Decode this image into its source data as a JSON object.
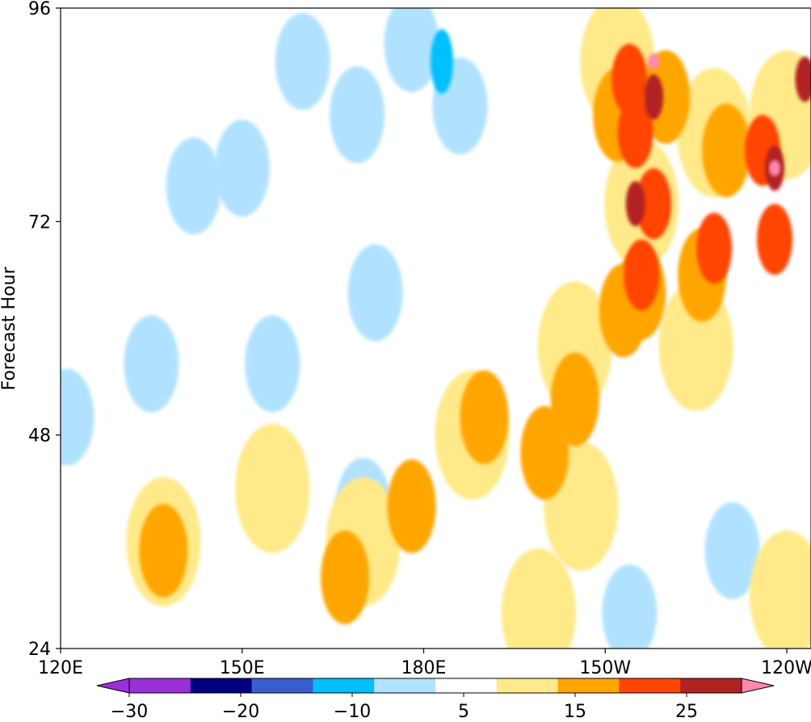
{
  "chart_data": {
    "type": "heatmap",
    "title": "",
    "xlabel": "",
    "ylabel": "Forecast Hour",
    "x_ticks": [
      "120E",
      "150E",
      "180E",
      "150W",
      "120W"
    ],
    "y_ticks": [
      24,
      48,
      72,
      96
    ],
    "xlim_deg_east": [
      120,
      244
    ],
    "ylim": [
      24,
      96
    ],
    "grid": false,
    "colorbar": {
      "orientation": "horizontal",
      "levels": [
        -30,
        -25,
        -20,
        -15,
        -10,
        -5,
        5,
        10,
        15,
        20,
        25,
        30
      ],
      "tick_labels": [
        "−30",
        "−20",
        "−10",
        "5",
        "15",
        "25"
      ],
      "colors": [
        "#9b30d8",
        "#000080",
        "#3a5fcd",
        "#00bfff",
        "#b0e2ff",
        "#ffffff",
        "#ffe988",
        "#ffa500",
        "#ff4500",
        "#b22222",
        "#ff88b0"
      ],
      "extend": "both",
      "under_color": "#9b30d8",
      "over_color": "#ff88b0"
    },
    "features": [
      {
        "x": 150,
        "y": 78,
        "band": "-10 to -5"
      },
      {
        "x": 172,
        "y": 64,
        "band": "-10 to -5"
      },
      {
        "x": 135,
        "y": 56,
        "band": "-10 to -5"
      },
      {
        "x": 121,
        "y": 50,
        "band": "-10 to -5"
      },
      {
        "x": 155,
        "y": 56,
        "band": "-10 to -5"
      },
      {
        "x": 160,
        "y": 90,
        "band": "-10 to -5"
      },
      {
        "x": 169,
        "y": 84,
        "band": "-10 to -5"
      },
      {
        "x": 142,
        "y": 76,
        "band": "-10 to -5"
      },
      {
        "x": 170,
        "y": 40,
        "band": "-10 to -5"
      },
      {
        "x": 231,
        "y": 35,
        "band": "-10 to -5"
      },
      {
        "x": 214,
        "y": 28,
        "band": "-10 to -5"
      },
      {
        "x": 178,
        "y": 92,
        "band": "-10 to -5"
      },
      {
        "x": 183,
        "y": 90,
        "band": "-15 to -10"
      },
      {
        "x": 186,
        "y": 85,
        "band": "-10 to -5"
      },
      {
        "x": 212,
        "y": 90,
        "band": "5 to 10"
      },
      {
        "x": 216,
        "y": 74,
        "band": "5 to 10"
      },
      {
        "x": 228,
        "y": 82,
        "band": "5 to 10"
      },
      {
        "x": 240,
        "y": 84,
        "band": "5 to 10"
      },
      {
        "x": 225,
        "y": 58,
        "band": "5 to 10"
      },
      {
        "x": 205,
        "y": 58,
        "band": "5 to 10"
      },
      {
        "x": 188,
        "y": 48,
        "band": "5 to 10"
      },
      {
        "x": 170,
        "y": 36,
        "band": "5 to 10"
      },
      {
        "x": 206,
        "y": 40,
        "band": "5 to 10"
      },
      {
        "x": 155,
        "y": 42,
        "band": "5 to 10"
      },
      {
        "x": 137,
        "y": 36,
        "band": "5 to 10"
      },
      {
        "x": 199,
        "y": 28,
        "band": "5 to 10"
      },
      {
        "x": 240,
        "y": 30,
        "band": "5 to 10"
      },
      {
        "x": 212,
        "y": 84,
        "band": "10 to 15"
      },
      {
        "x": 220,
        "y": 86,
        "band": "10 to 15"
      },
      {
        "x": 230,
        "y": 80,
        "band": "10 to 15"
      },
      {
        "x": 213,
        "y": 62,
        "band": "10 to 15"
      },
      {
        "x": 216,
        "y": 64,
        "band": "10 to 15"
      },
      {
        "x": 226,
        "y": 66,
        "band": "10 to 15"
      },
      {
        "x": 190,
        "y": 50,
        "band": "10 to 15"
      },
      {
        "x": 178,
        "y": 40,
        "band": "10 to 15"
      },
      {
        "x": 200,
        "y": 46,
        "band": "10 to 15"
      },
      {
        "x": 205,
        "y": 52,
        "band": "10 to 15"
      },
      {
        "x": 167,
        "y": 32,
        "band": "10 to 15"
      },
      {
        "x": 137,
        "y": 35,
        "band": "10 to 15"
      },
      {
        "x": 215,
        "y": 82,
        "band": "15 to 20"
      },
      {
        "x": 218,
        "y": 74,
        "band": "15 to 20"
      },
      {
        "x": 236,
        "y": 80,
        "band": "15 to 20"
      },
      {
        "x": 238,
        "y": 70,
        "band": "15 to 20"
      },
      {
        "x": 216,
        "y": 66,
        "band": "15 to 20"
      },
      {
        "x": 228,
        "y": 69,
        "band": "15 to 20"
      },
      {
        "x": 214,
        "y": 88,
        "band": "15 to 20"
      },
      {
        "x": 218,
        "y": 86,
        "band": "20 to 25"
      },
      {
        "x": 215,
        "y": 74,
        "band": "20 to 25"
      },
      {
        "x": 238,
        "y": 78,
        "band": "20 to 25"
      },
      {
        "x": 243,
        "y": 88,
        "band": "20 to 25"
      },
      {
        "x": 218,
        "y": 90,
        "band": "25 to 30"
      },
      {
        "x": 238,
        "y": 78,
        "band": "25 to 30"
      }
    ]
  }
}
